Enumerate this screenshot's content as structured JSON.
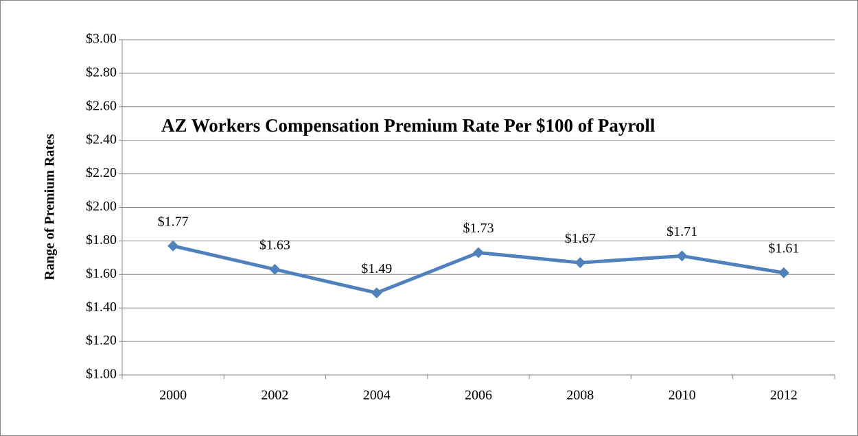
{
  "chart_data": {
    "type": "line",
    "title": "AZ Workers Compensation Premium Rate Per $100 of Payroll",
    "y_label": "Range of Premium Rates",
    "categories": [
      "2000",
      "2002",
      "2004",
      "2006",
      "2008",
      "2010",
      "2012"
    ],
    "values": [
      1.77,
      1.63,
      1.49,
      1.73,
      1.67,
      1.71,
      1.61
    ],
    "value_labels": [
      "$1.77",
      "$1.63",
      "$1.49",
      "$1.73",
      "$1.67",
      "$1.71",
      "$1.61"
    ],
    "color": "#4f81bd",
    "ylim": [
      1,
      3
    ],
    "yticks": [
      {
        "value": 1,
        "label": "$1.00"
      },
      {
        "value": 1.2,
        "label": "$1.20"
      },
      {
        "value": 1.4,
        "label": "$1.40"
      },
      {
        "value": 1.6,
        "label": "$1.60"
      },
      {
        "value": 1.8,
        "label": "$1.80"
      },
      {
        "value": 2,
        "label": "$2.00"
      },
      {
        "value": 2.2,
        "label": "$2.20"
      },
      {
        "value": 2.4,
        "label": "$2.40"
      },
      {
        "value": 2.6,
        "label": "$2.60"
      },
      {
        "value": 2.8,
        "label": "$2.80"
      },
      {
        "value": 3,
        "label": "$3.00"
      }
    ],
    "grid": true
  }
}
